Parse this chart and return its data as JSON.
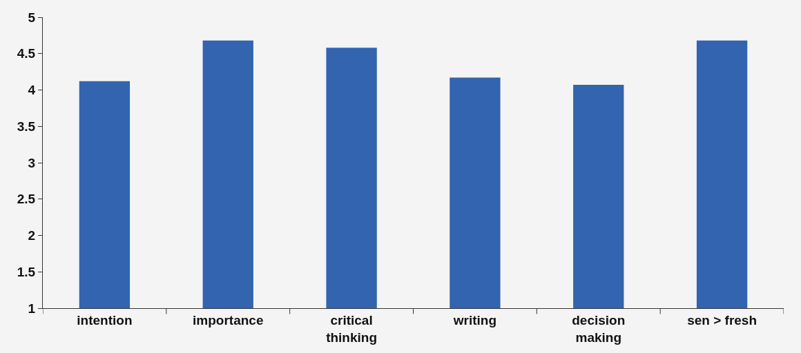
{
  "chart_data": {
    "type": "bar",
    "categories": [
      "intention",
      "importance",
      "critical thinking",
      "writing",
      "decision making",
      "sen > fresh"
    ],
    "values": [
      4.12,
      4.68,
      4.58,
      4.17,
      4.07,
      4.68
    ],
    "color": "#3264b0",
    "ylim": [
      1,
      5
    ],
    "yticks": [
      1,
      1.5,
      2,
      2.5,
      3,
      3.5,
      4,
      4.5,
      5
    ],
    "grid": false
  }
}
